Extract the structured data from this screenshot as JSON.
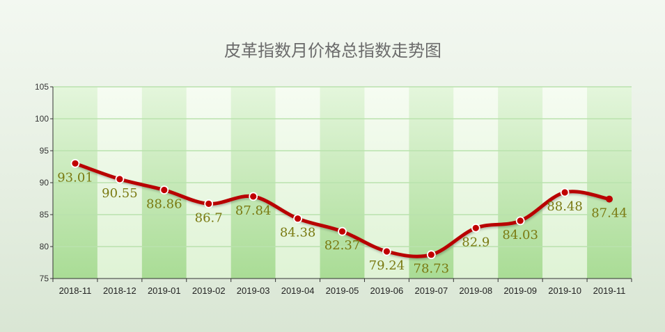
{
  "chart_data": {
    "type": "line",
    "title": "皮革指数月价格总指数走势图",
    "xlabel": "",
    "ylabel": "",
    "categories": [
      "2018-11",
      "2018-12",
      "2019-01",
      "2019-02",
      "2019-03",
      "2019-04",
      "2019-05",
      "2019-06",
      "2019-07",
      "2019-08",
      "2019-09",
      "2019-10",
      "2019-11"
    ],
    "series": [
      {
        "values": [
          93.01,
          90.55,
          88.86,
          86.7,
          87.84,
          84.38,
          82.37,
          79.24,
          78.73,
          82.9,
          84.03,
          88.48,
          87.44
        ]
      }
    ],
    "data_labels": [
      "93.01",
      "90.55",
      "88.86",
      "86.7",
      "87.84",
      "84.38",
      "82.37",
      "79.24",
      "78.73",
      "82.9",
      "84.03",
      "88.48",
      "87.44"
    ],
    "ylim": [
      75,
      105
    ],
    "yticks": [
      75,
      80,
      85,
      90,
      95,
      100,
      105
    ],
    "grid": true,
    "legend": "none",
    "colors": {
      "line": "#b80000",
      "marker_fill": "#c00000",
      "marker_stroke": "#ffffff",
      "label": "#7a7a12",
      "grid": "#b9e2ad",
      "band_dark": "#c2e8b3",
      "band_light": "#ecf8e4",
      "axis": "#333333"
    }
  }
}
